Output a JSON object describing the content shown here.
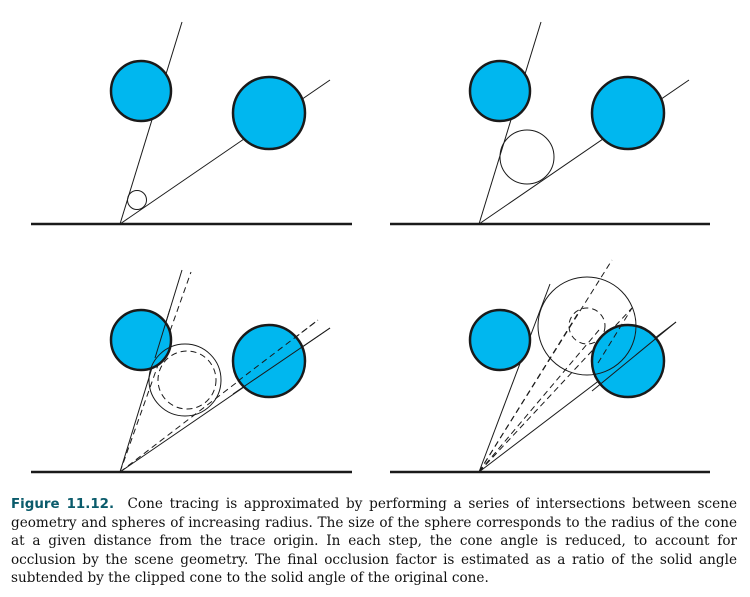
{
  "figure": {
    "sphere_fill": "#00b7ef",
    "stroke": "#1a1a1a",
    "panels": 4
  },
  "caption": {
    "label": "Figure 11.12.",
    "text": "Cone tracing is approximated by performing a series of intersections between scene geometry and spheres of increasing radius. The size of the sphere corresponds to the radius of the cone at a given distance from the trace origin. In each step, the cone angle is reduced, to account for occlusion by the scene geometry. The final occlusion factor is estimated as a ratio of the solid angle subtended by the clipped cone to the solid angle of the original cone."
  }
}
